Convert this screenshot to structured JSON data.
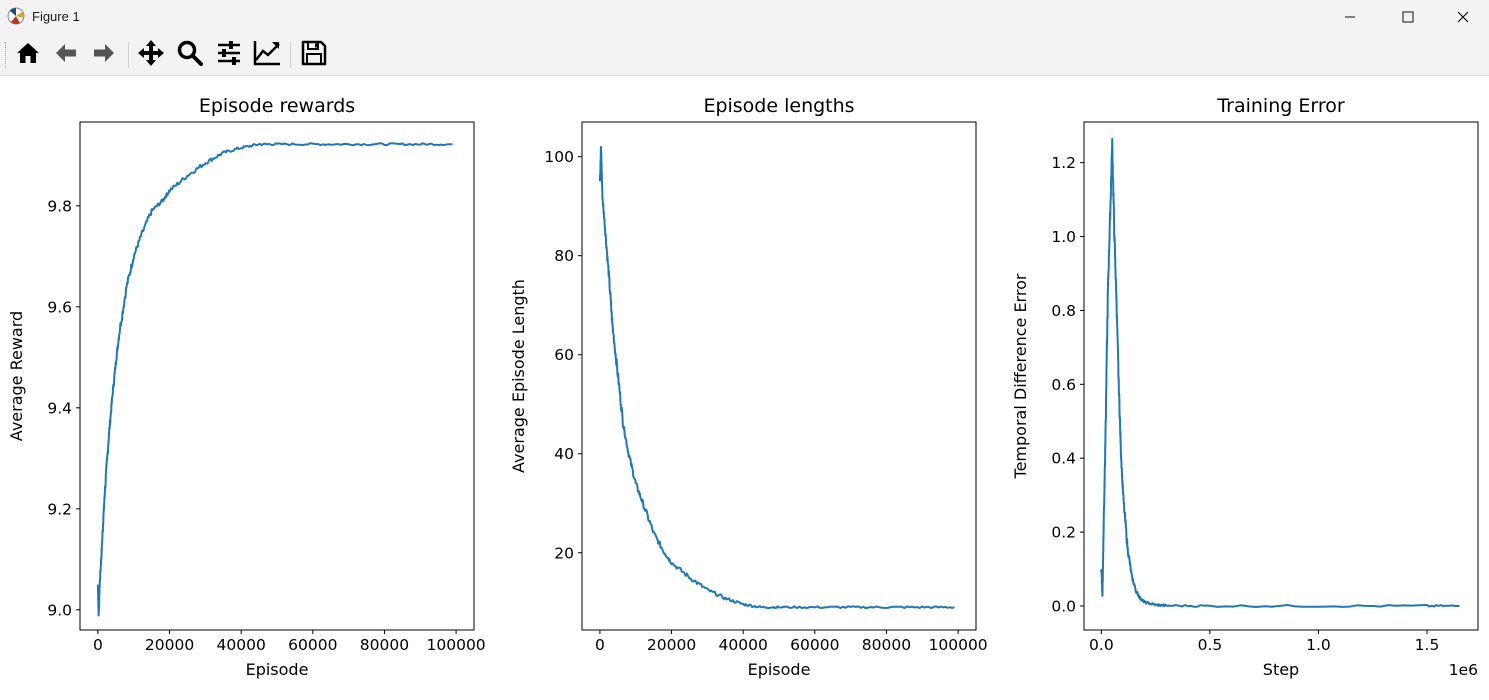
{
  "window": {
    "title": "Figure 1",
    "icon": "matplotlib-icon",
    "controls": [
      "minimize-icon",
      "maximize-icon",
      "close-icon"
    ]
  },
  "toolbar": {
    "items": [
      {
        "name": "home-icon",
        "tooltip": ""
      },
      {
        "name": "back-arrow-icon",
        "tooltip": ""
      },
      {
        "name": "forward-arrow-icon",
        "tooltip": ""
      },
      {
        "name": "pan-icon",
        "tooltip": ""
      },
      {
        "name": "zoom-icon",
        "tooltip": ""
      },
      {
        "name": "subplots-config-icon",
        "tooltip": ""
      },
      {
        "name": "edit-axis-icon",
        "tooltip": ""
      },
      {
        "name": "save-icon",
        "tooltip": ""
      }
    ]
  },
  "colors": {
    "line": "#1f77b4",
    "axes": "#000000",
    "background": "#ffffff",
    "window_chrome": "#f3f3f3"
  },
  "chart_data": [
    {
      "type": "line",
      "title": "Episode rewards",
      "xlabel": "Episode",
      "ylabel": "Average Reward",
      "xlim": [
        -5000,
        105000
      ],
      "ylim": [
        8.96,
        9.966
      ],
      "xticks": [
        0,
        20000,
        40000,
        60000,
        80000,
        100000
      ],
      "xtick_labels": [
        "0",
        "20000",
        "40000",
        "60000",
        "80000",
        "100000"
      ],
      "yticks": [
        9.0,
        9.2,
        9.4,
        9.6,
        9.8
      ],
      "ytick_labels": [
        "9.0",
        "9.2",
        "9.4",
        "9.6",
        "9.8"
      ],
      "grid": false,
      "series": [
        {
          "values_x": [
            0,
            200,
            500,
            1000,
            1500,
            2000,
            3000,
            4000,
            5000,
            6000,
            8000,
            10000,
            12000,
            15000,
            18000,
            20000,
            25000,
            30000,
            35000,
            40000,
            45000,
            50000,
            60000,
            70000,
            80000,
            90000,
            99000
          ],
          "values_y": [
            9.05,
            8.99,
            9.05,
            9.11,
            9.18,
            9.24,
            9.34,
            9.42,
            9.49,
            9.55,
            9.64,
            9.7,
            9.74,
            9.79,
            9.81,
            9.83,
            9.86,
            9.885,
            9.905,
            9.915,
            9.922,
            9.922,
            9.922,
            9.922,
            9.922,
            9.922,
            9.922
          ]
        }
      ]
    },
    {
      "type": "line",
      "title": "Episode lengths",
      "xlabel": "Episode",
      "ylabel": "Average Episode Length",
      "xlim": [
        -5000,
        105000
      ],
      "ylim": [
        4.4,
        107.0
      ],
      "xticks": [
        0,
        20000,
        40000,
        60000,
        80000,
        100000
      ],
      "xtick_labels": [
        "0",
        "20000",
        "40000",
        "60000",
        "80000",
        "100000"
      ],
      "yticks": [
        20,
        40,
        60,
        80,
        100
      ],
      "ytick_labels": [
        "20",
        "40",
        "60",
        "80",
        "100"
      ],
      "grid": false,
      "series": [
        {
          "values_x": [
            0,
            300,
            700,
            1500,
            2500,
            3500,
            5000,
            6500,
            8000,
            10000,
            12000,
            15000,
            18000,
            20000,
            25000,
            30000,
            35000,
            40000,
            45000,
            50000,
            60000,
            70000,
            80000,
            90000,
            99000
          ],
          "values_y": [
            95,
            102,
            92,
            85,
            76,
            66,
            56,
            46,
            40,
            34,
            30,
            24,
            20,
            18,
            15,
            12.5,
            10.8,
            9.6,
            9.0,
            9.0,
            9.0,
            9.0,
            9.0,
            9.0,
            9.0
          ]
        }
      ]
    },
    {
      "type": "line",
      "title": "Training Error",
      "xlabel": "Step",
      "ylabel": "Temporal Difference Error",
      "offset_label": "1e6",
      "xlim": [
        -0.08,
        1.735
      ],
      "ylim": [
        -0.065,
        1.31
      ],
      "xticks": [
        0.0,
        0.5,
        1.0,
        1.5
      ],
      "xtick_labels": [
        "0.0",
        "0.5",
        "1.0",
        "1.5"
      ],
      "yticks": [
        0.0,
        0.2,
        0.4,
        0.6,
        0.8,
        1.0,
        1.2
      ],
      "ytick_labels": [
        "0.0",
        "0.2",
        "0.4",
        "0.6",
        "0.8",
        "1.0",
        "1.2"
      ],
      "grid": false,
      "series": [
        {
          "values_x": [
            0.0,
            0.005,
            0.01,
            0.02,
            0.03,
            0.04,
            0.05,
            0.06,
            0.07,
            0.08,
            0.09,
            0.1,
            0.12,
            0.14,
            0.16,
            0.18,
            0.2,
            0.25,
            0.3,
            0.5,
            1.0,
            1.5,
            1.65
          ],
          "values_y": [
            0.1,
            0.03,
            0.2,
            0.5,
            0.85,
            1.05,
            1.25,
            1.0,
            0.82,
            0.6,
            0.42,
            0.3,
            0.16,
            0.08,
            0.04,
            0.02,
            0.01,
            0.003,
            0.001,
            0.0,
            0.0,
            0.0,
            0.0
          ]
        }
      ]
    }
  ]
}
